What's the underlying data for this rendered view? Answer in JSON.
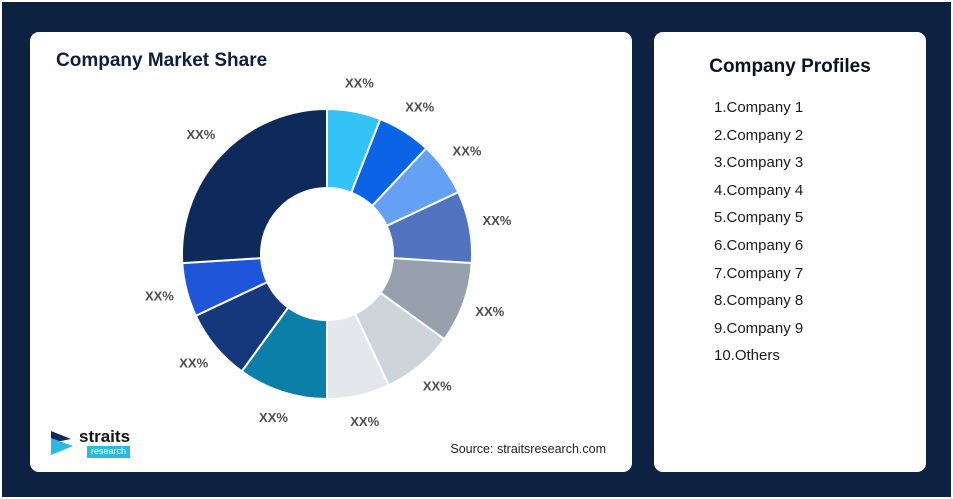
{
  "background_color": "#0d2140",
  "accent_color": "#2ab9e0",
  "left_card": {
    "title": "Company Market Share",
    "source": "Source: straitsresearch.com",
    "logo": {
      "name": "straits",
      "sub": "research"
    }
  },
  "right_card": {
    "title": "Company Profiles",
    "items": [
      "Company 1",
      "Company 2",
      "Company 3",
      "Company 4",
      "Company 5",
      "Company 6",
      "Company 7",
      "Company 8",
      "Company 9",
      "Others"
    ]
  },
  "chart_data": {
    "type": "pie",
    "donut": true,
    "title": "Company Market Share",
    "value_labels_placeholder": "XX%",
    "legend_position": "none",
    "segments": [
      {
        "label": "XX%",
        "value": 6,
        "color": "#33c3f7"
      },
      {
        "label": "XX%",
        "value": 6,
        "color": "#0b63e5"
      },
      {
        "label": "XX%",
        "value": 6,
        "color": "#64a0f4"
      },
      {
        "label": "XX%",
        "value": 8,
        "color": "#5173c0"
      },
      {
        "label": "XX%",
        "value": 9,
        "color": "#97a1ae"
      },
      {
        "label": "XX%",
        "value": 8,
        "color": "#cdd4da"
      },
      {
        "label": "XX%",
        "value": 7,
        "color": "#e4e8ec"
      },
      {
        "label": "XX%",
        "value": 10,
        "color": "#0c7fa8"
      },
      {
        "label": "XX%",
        "value": 8,
        "color": "#15377c"
      },
      {
        "label": "XX%",
        "value": 6,
        "color": "#1f55d8"
      },
      {
        "label": "XX%",
        "value": 26,
        "color": "#0d2a5a"
      }
    ]
  }
}
